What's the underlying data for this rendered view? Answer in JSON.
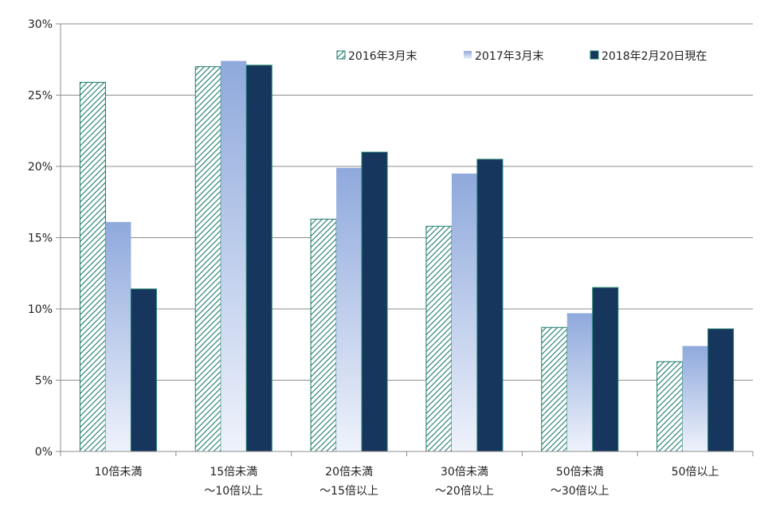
{
  "chart_data": {
    "type": "bar",
    "categories": [
      [
        "10倍未満"
      ],
      [
        "15倍未満",
        "～10倍以上"
      ],
      [
        "20倍未満",
        "～15倍以上"
      ],
      [
        "30倍未満",
        "～20倍以上"
      ],
      [
        "50倍未満",
        "～30倍以上"
      ],
      [
        "50倍以上"
      ]
    ],
    "series": [
      {
        "name": "2016年3月末",
        "values": [
          25.9,
          27.0,
          16.3,
          15.8,
          8.7,
          6.3
        ],
        "style": "hatch",
        "color": "#1a7a6a"
      },
      {
        "name": "2017年3月末",
        "values": [
          16.1,
          27.4,
          19.9,
          19.5,
          9.7,
          7.4
        ],
        "style": "gradient",
        "color": "#96b0e0"
      },
      {
        "name": "2018年2月20日現在",
        "values": [
          11.4,
          27.1,
          21.0,
          20.5,
          11.5,
          8.6
        ],
        "style": "solid",
        "color": "#17365d"
      }
    ],
    "yticks": [
      "0%",
      "5%",
      "10%",
      "15%",
      "20%",
      "25%",
      "30%"
    ],
    "ylim": [
      0,
      30
    ],
    "grid": true,
    "legend_position": "top-right",
    "title": "",
    "xlabel": "",
    "ylabel": ""
  }
}
